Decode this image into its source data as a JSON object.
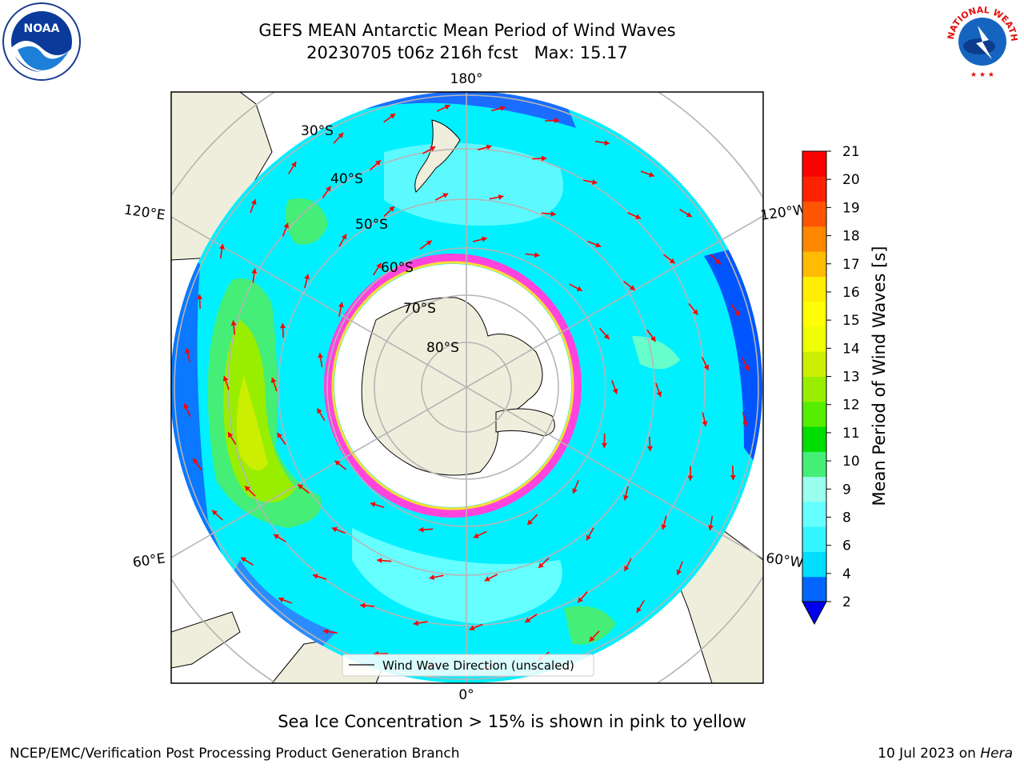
{
  "title": {
    "line1": "GEFS MEAN Antarctic Mean Period of Wind Waves",
    "line2": "20230705 t06z 216h fcst   Max: 15.17"
  },
  "map": {
    "projection": "south-polar-stereographic",
    "lon_labels": [
      "180°",
      "120°E",
      "120°W",
      "60°E",
      "60°W",
      "0°"
    ],
    "lat_labels": [
      "30°S",
      "40°S",
      "50°S",
      "60°S",
      "70°S",
      "80°S"
    ],
    "legend_label": "Wind Wave Direction (unscaled)",
    "colors": {
      "land": "#efeedc",
      "ice_edge_pink": "#ff44dd",
      "ice_edge_yellow": "#ffdd33",
      "arrow": "#ff0000",
      "grid": "#b5b5b5"
    }
  },
  "colorbar": {
    "label": "Mean Period of Wind Waves [s]",
    "ticks": [
      "2",
      "4",
      "6",
      "8",
      "9",
      "10",
      "11",
      "12",
      "13",
      "14",
      "15",
      "16",
      "17",
      "18",
      "19",
      "20",
      "21"
    ],
    "colors": [
      "#0066ff",
      "#00ddff",
      "#33f5ff",
      "#66ffff",
      "#99ffee",
      "#44ee77",
      "#00dd00",
      "#55ee00",
      "#99ee00",
      "#ccee00",
      "#eeff00",
      "#ffff00",
      "#ffee00",
      "#ffbb00",
      "#ff8800",
      "#ff5500",
      "#ff2200",
      "#ff0000"
    ],
    "extend_color": "#0000ee"
  },
  "footer": {
    "note": "Sea Ice Concentration > 15% is shown in pink to yellow",
    "left": "NCEP/EMC/Verification Post Processing Product Generation Branch",
    "right_prefix": "10 Jul 2023 on ",
    "right_italic": "Hera"
  },
  "logos": {
    "noaa_text": "NOAA",
    "nws_text": "NATIONAL WEATHER SERVICE"
  }
}
